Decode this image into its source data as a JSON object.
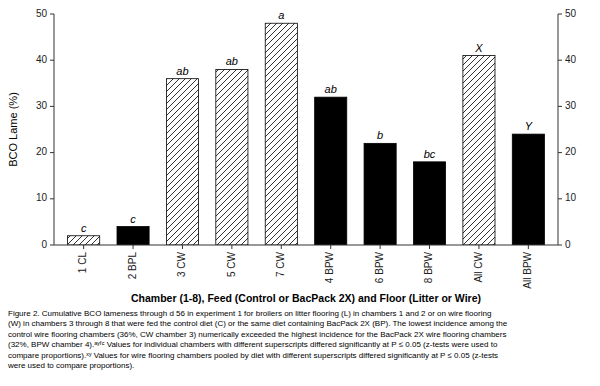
{
  "chart_data": {
    "type": "bar",
    "categories": [
      "1 CL",
      "2 BPL",
      "3 CW",
      "5 CW",
      "7 CW",
      "4 BPW",
      "6 BPW",
      "8 BPW",
      "All CW",
      "All BPW"
    ],
    "values": [
      2.0,
      4.0,
      36.0,
      38.0,
      48.0,
      32.0,
      22.0,
      18.0,
      41.0,
      24.0
    ],
    "colors": [
      "#ffffff",
      "#000000",
      "#ffffff",
      "#ffffff",
      "#ffffff",
      "#000000",
      "#000000",
      "#000000",
      "#ffffff",
      "#000000"
    ],
    "annotations": [
      "c",
      "c",
      "ab",
      "ab",
      "a",
      "ab",
      "b",
      "bc",
      "X",
      "Y"
    ],
    "y_label": "BCO Lame (%)",
    "x_label": "Chamber (1-8), Feed (Control or BacPack 2X) and Floor (Litter or Wire)",
    "ylim": [
      0,
      50
    ],
    "yticks": [
      0,
      10,
      20,
      30,
      40,
      50
    ],
    "y2lim": [
      0,
      50
    ],
    "y2ticks": [
      0,
      10,
      20,
      30,
      40,
      50
    ],
    "grid": false,
    "caption": [
      "Figure 2. Cumulative BCO lameness through d 56 in experiment 1 for broilers on litter flooring (L) in chambers 1 and 2 or on wire flooring",
      "(W) in chambers 3 through 8 that were fed the control diet (C) or the same diet containing BacPack 2X (BP). The lowest incidence among the",
      "control wire flooring chambers (36%, CW chamber 3) numerically exceeded the highest incidence for the BacPack 2X wire flooring chambers",
      "(32%, BPW chamber 4).ᵃʸᶠᶜ Values for individual chambers with different superscripts differed significantly at P ≤ 0.05 (z-tests were used to",
      "compare proportions).ˣʸ Values for wire flooring chambers pooled by diet with different superscripts differed significantly at P ≤ 0.05 (z-tests",
      "were used to compare proportions)."
    ]
  }
}
